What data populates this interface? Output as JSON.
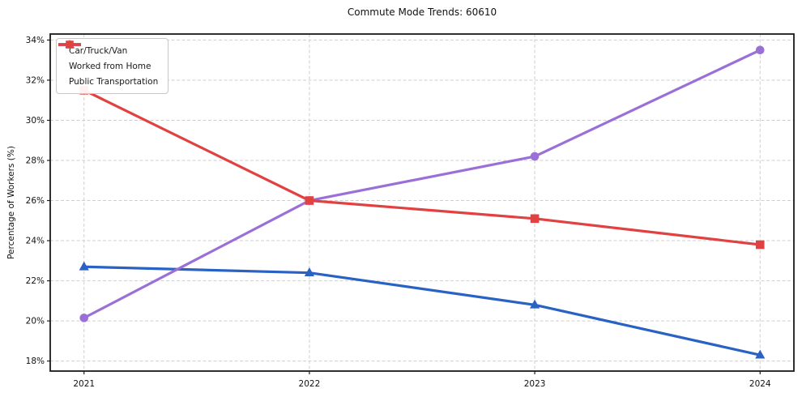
{
  "chart_data": {
    "type": "line",
    "title": "Commute Mode Trends: 60610",
    "ylabel": "Percentage of Workers (%)",
    "xlabel": "",
    "categories": [
      2021,
      2022,
      2023,
      2024
    ],
    "series": [
      {
        "name": "Car/Truck/Van",
        "color": "#2a62c4",
        "marker": "triangle",
        "values": [
          22.7,
          22.4,
          20.8,
          18.3
        ]
      },
      {
        "name": "Worked from Home",
        "color": "#9a70d8",
        "marker": "circle",
        "values": [
          20.15,
          26.0,
          28.2,
          33.5
        ]
      },
      {
        "name": "Public Transportation",
        "color": "#e14141",
        "marker": "square",
        "values": [
          31.5,
          26.0,
          25.1,
          23.8
        ]
      }
    ],
    "y_ticks": [
      18,
      20,
      22,
      24,
      26,
      28,
      30,
      32,
      34
    ],
    "y_tick_suffix": "%",
    "ylim": [
      17.5,
      34.3
    ],
    "xlim": [
      2020.85,
      2024.15
    ],
    "grid": "dashed",
    "legend_position": "upper-left",
    "colors": {
      "grid": "#cfcfcf",
      "spine": "#1a1a1a",
      "text": "#111111",
      "background": "#ffffff"
    }
  }
}
